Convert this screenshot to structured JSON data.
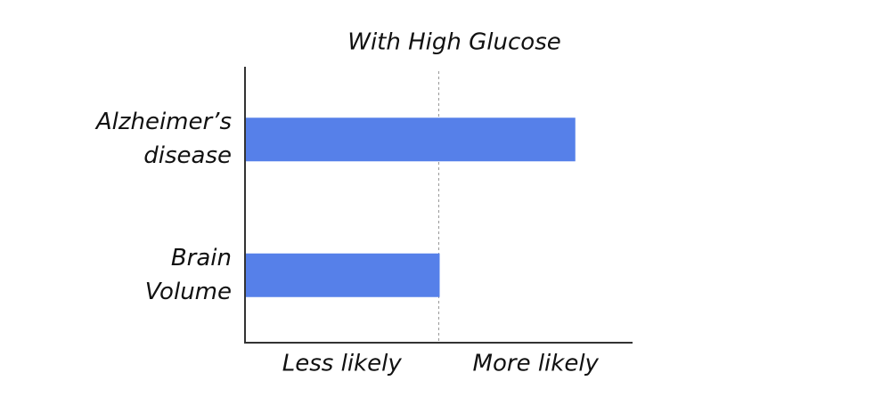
{
  "chart_data": {
    "type": "barh",
    "title": "With High Glucose",
    "categories": [
      "Alzheimer’s\ndisease",
      "Brain\nVolume"
    ],
    "values": [
      1.7,
      1
    ],
    "color": "#5680e9",
    "xlim": [
      0,
      2
    ],
    "reference_line": 1,
    "x_labels": [
      "Less likely",
      "More likely"
    ]
  }
}
